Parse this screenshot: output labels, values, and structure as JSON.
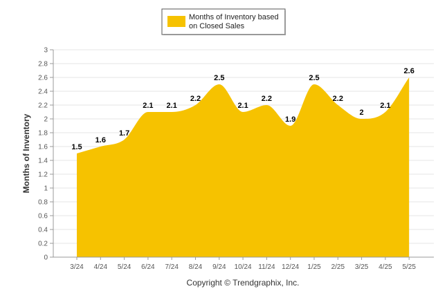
{
  "chart_data": {
    "type": "area",
    "categories": [
      "3/24",
      "4/24",
      "5/24",
      "6/24",
      "7/24",
      "8/24",
      "9/24",
      "10/24",
      "11/24",
      "12/24",
      "1/25",
      "2/25",
      "3/25",
      "4/25",
      "5/25"
    ],
    "series": [
      {
        "name": "Months of Inventory based on Closed Sales",
        "values": [
          1.5,
          1.6,
          1.7,
          2.1,
          2.1,
          2.2,
          2.5,
          2.1,
          2.2,
          1.9,
          2.5,
          2.2,
          2,
          2.1,
          2.6
        ],
        "labels": [
          "1.5",
          "1.6",
          "1.7",
          "2.1",
          "2.1",
          "2.2",
          "2.5",
          "2.1",
          "2.2",
          "1.9",
          "2.5",
          "2.2",
          "2",
          "2.1",
          "2.6"
        ],
        "color": "#f6c200"
      }
    ],
    "ylabel": "Months of Inventory",
    "xlabel": "",
    "ylim": [
      0,
      3
    ],
    "yticks": [
      "0",
      "0.2",
      "0.4",
      "0.6",
      "0.8",
      "1",
      "1.2",
      "1.4",
      "1.6",
      "1.8",
      "2",
      "2.2",
      "2.4",
      "2.6",
      "2.8",
      "3"
    ],
    "grid": true,
    "legend": {
      "placement": "top-center",
      "lines": [
        "Months of Inventory based",
        "on Closed Sales"
      ]
    }
  },
  "footer": {
    "copyright": "Copyright © Trendgraphix, Inc."
  }
}
